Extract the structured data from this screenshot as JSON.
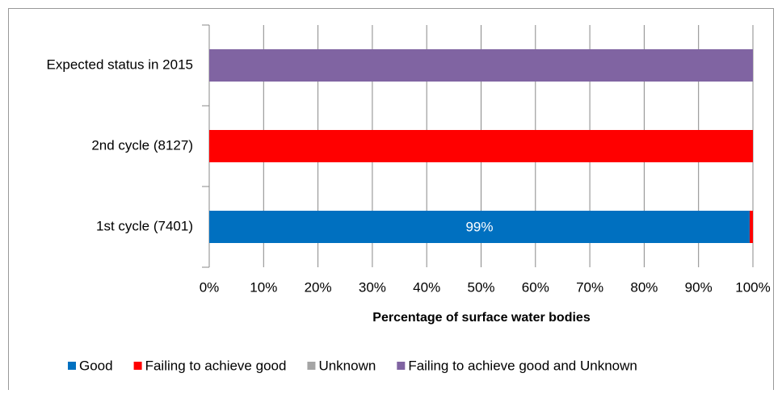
{
  "chart_data": {
    "type": "stacked-bar-horizontal",
    "xlabel": "Percentage of surface water bodies",
    "categories": [
      "Expected status in 2015",
      "2nd cycle (8127)",
      "1st cycle (7401)"
    ],
    "series": [
      {
        "name": "Good",
        "color": "#0070c0",
        "values": [
          0,
          0,
          99.4
        ],
        "value_labels": [
          "0%",
          "0%",
          "99%"
        ]
      },
      {
        "name": "Failing to achieve good",
        "color": "#ff0000",
        "values": [
          0,
          100,
          0.6
        ]
      },
      {
        "name": "Unknown",
        "color": "#a5a5a5",
        "values": [
          0,
          0,
          0
        ]
      },
      {
        "name": "Failing to achieve good and Unknown",
        "color": "#8064a2",
        "values": [
          100,
          0,
          0
        ]
      }
    ],
    "xlim": [
      0,
      100
    ],
    "xticks": [
      {
        "value": 0,
        "label": "0%"
      },
      {
        "value": 10,
        "label": "10%"
      },
      {
        "value": 20,
        "label": "20%"
      },
      {
        "value": 30,
        "label": "30%"
      },
      {
        "value": 40,
        "label": "40%"
      },
      {
        "value": 50,
        "label": "50%"
      },
      {
        "value": 60,
        "label": "60%"
      },
      {
        "value": 70,
        "label": "70%"
      },
      {
        "value": 80,
        "label": "80%"
      },
      {
        "value": 90,
        "label": "90%"
      },
      {
        "value": 100,
        "label": "100%"
      }
    ],
    "grid": true,
    "legend": "bottom"
  }
}
